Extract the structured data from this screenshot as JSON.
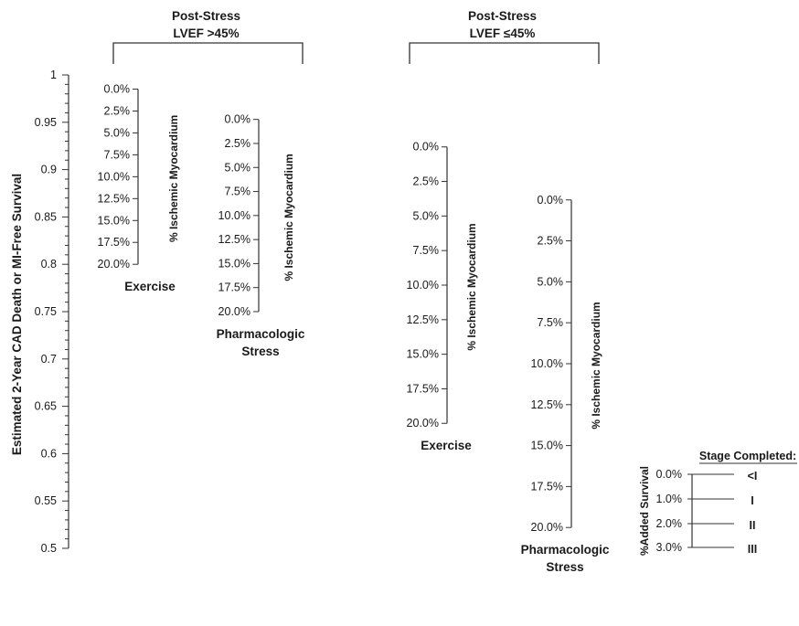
{
  "chart_data": {
    "type": "nomogram",
    "survival_axis": {
      "title": "Estimated 2-Year CAD Death or MI-Free Survival",
      "min": 0.5,
      "max": 1,
      "major_step": 0.05,
      "minor_step": 0.01,
      "ticks": [
        "1",
        "0.95",
        "0.9",
        "0.85",
        "0.8",
        "0.75",
        "0.7",
        "0.65",
        "0.6",
        "0.55",
        "0.5"
      ]
    },
    "groups": [
      {
        "title_line1": "Post-Stress",
        "title_line2": "LVEF >45%",
        "scales": [
          {
            "name_line1": "Exercise",
            "name_line2": "",
            "axis_title": "% Ischemic Myocardium",
            "ticks": [
              "0.0%",
              "2.5%",
              "5.0%",
              "7.5%",
              "10.0%",
              "12.5%",
              "15.0%",
              "17.5%",
              "20.0%"
            ],
            "survival_at_0": 0.985,
            "survival_at_20": 0.8
          },
          {
            "name_line1": "Pharmacologic",
            "name_line2": "Stress",
            "axis_title": "% Ischemic Myocardium",
            "ticks": [
              "0.0%",
              "2.5%",
              "5.0%",
              "7.5%",
              "10.0%",
              "12.5%",
              "15.0%",
              "17.5%",
              "20.0%"
            ],
            "survival_at_0": 0.953,
            "survival_at_20": 0.75
          }
        ]
      },
      {
        "title_line1": "Post-Stress",
        "title_line2": "LVEF  ≤45%",
        "scales": [
          {
            "name_line1": "Exercise",
            "name_line2": "",
            "axis_title": "% Ischemic Myocardium",
            "ticks": [
              "0.0%",
              "2.5%",
              "5.0%",
              "7.5%",
              "10.0%",
              "12.5%",
              "15.0%",
              "17.5%",
              "20.0%"
            ],
            "survival_at_0": 0.924,
            "survival_at_20": 0.632
          },
          {
            "name_line1": "Pharmacologic",
            "name_line2": "Stress",
            "axis_title": "% Ischemic Myocardium",
            "ticks": [
              "0.0%",
              "2.5%",
              "5.0%",
              "7.5%",
              "10.0%",
              "12.5%",
              "15.0%",
              "17.5%",
              "20.0%"
            ],
            "survival_at_0": 0.868,
            "survival_at_20": 0.522
          }
        ]
      }
    ],
    "stage_scale": {
      "axis_title": "%Added Survival",
      "header": "Stage Completed:",
      "rows": [
        {
          "value": "0.0%",
          "stage": "<I"
        },
        {
          "value": "1.0%",
          "stage": "I"
        },
        {
          "value": "2.0%",
          "stage": "II"
        },
        {
          "value": "3.0%",
          "stage": "III"
        }
      ]
    }
  }
}
